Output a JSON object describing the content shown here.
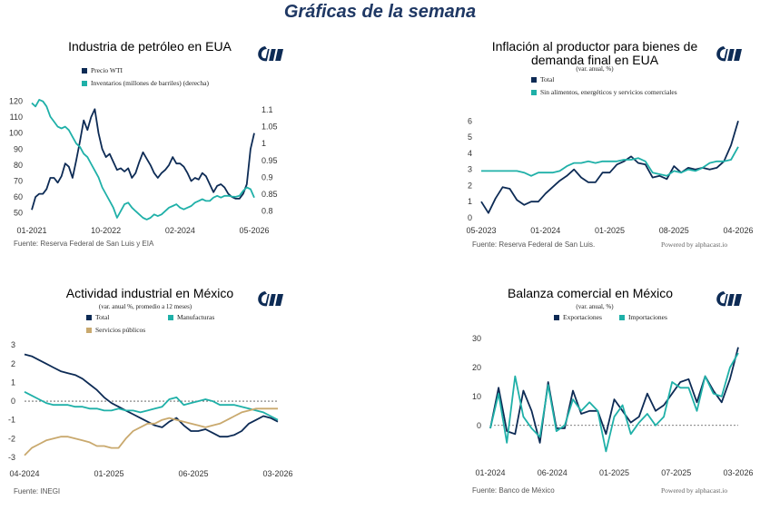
{
  "page": {
    "title": "Gráficas de la semana"
  },
  "colors": {
    "navy": "#0d2b55",
    "teal": "#1fb0a8",
    "gold": "#c9a96e",
    "logo": "#0d2b55"
  },
  "chart_data": [
    {
      "type": "line",
      "title": "Industria de petróleo en EUA",
      "subtitle": "",
      "source": "Fuente: Reserva Federal de San Luis y EIA",
      "powered": "",
      "x_ticks": [
        "01-2021",
        "10-2022",
        "02-2024",
        "05-2026"
      ],
      "y_ticks": [
        "50",
        "60",
        "70",
        "80",
        "90",
        "100",
        "110",
        "120"
      ],
      "y2_ticks": [
        "0.8",
        "0.85",
        "0.9",
        "0.95",
        "1",
        "1.05",
        "1.1"
      ],
      "ylim": [
        47,
        122
      ],
      "y2lim": [
        0.78,
        1.135
      ],
      "series": [
        {
          "name": "Precio WTI",
          "color": "#0d2b55",
          "axis": "left",
          "values": [
            52,
            60,
            62,
            62,
            65,
            72,
            72,
            69,
            73,
            81,
            79,
            72,
            83,
            95,
            108,
            102,
            110,
            115,
            100,
            90,
            85,
            87,
            82,
            77,
            78,
            76,
            78,
            72,
            75,
            82,
            88,
            84,
            80,
            75,
            72,
            75,
            77,
            80,
            85,
            81,
            81,
            79,
            75,
            70,
            72,
            71,
            75,
            73,
            68,
            63,
            67,
            68,
            66,
            62,
            60,
            59,
            59,
            62,
            68,
            90,
            100
          ]
        },
        {
          "name": "Inventarios (millones de barriles) (derecha)",
          "color": "#1fb0a8",
          "axis": "right",
          "values": [
            1.12,
            1.11,
            1.13,
            1.125,
            1.11,
            1.08,
            1.065,
            1.05,
            1.045,
            1.05,
            1.04,
            1.02,
            1.0,
            0.99,
            0.97,
            0.96,
            0.94,
            0.92,
            0.9,
            0.87,
            0.85,
            0.83,
            0.81,
            0.78,
            0.8,
            0.82,
            0.825,
            0.81,
            0.8,
            0.79,
            0.78,
            0.775,
            0.78,
            0.79,
            0.785,
            0.79,
            0.8,
            0.81,
            0.815,
            0.82,
            0.81,
            0.805,
            0.81,
            0.815,
            0.825,
            0.83,
            0.835,
            0.83,
            0.83,
            0.84,
            0.845,
            0.84,
            0.845,
            0.845,
            0.843,
            0.842,
            0.845,
            0.86,
            0.87,
            0.865,
            0.84
          ]
        }
      ]
    },
    {
      "type": "line",
      "title": "Inflación al productor para bienes de demanda final en EUA",
      "subtitle": "(var. anual, %)",
      "source": "Fuente: Reserva Federal de San Luis.",
      "powered": "Powered by alphacast.io",
      "x_ticks": [
        "05-2023",
        "01-2024",
        "01-2025",
        "08-2025",
        "04-2026"
      ],
      "y_ticks": [
        "0",
        "1",
        "2",
        "3",
        "4",
        "5",
        "6"
      ],
      "ylim": [
        0,
        6.3
      ],
      "series": [
        {
          "name": "Total",
          "color": "#0d2b55",
          "values": [
            1.0,
            0.3,
            1.2,
            1.9,
            1.8,
            1.1,
            0.8,
            1.0,
            1.0,
            1.5,
            1.9,
            2.3,
            2.6,
            3.0,
            2.5,
            2.2,
            2.2,
            2.8,
            2.8,
            3.3,
            3.5,
            3.8,
            3.4,
            3.3,
            2.5,
            2.6,
            2.4,
            3.2,
            2.8,
            3.1,
            3.0,
            3.1,
            3.0,
            3.1,
            3.5,
            4.5,
            6.0
          ]
        },
        {
          "name": "Sin alimentos, energéticos y servicios comerciales",
          "color": "#1fb0a8",
          "values": [
            2.9,
            2.9,
            2.9,
            2.9,
            2.9,
            2.9,
            2.8,
            2.6,
            2.8,
            2.8,
            2.8,
            2.9,
            3.2,
            3.4,
            3.4,
            3.5,
            3.4,
            3.5,
            3.5,
            3.5,
            3.6,
            3.6,
            3.7,
            3.5,
            2.8,
            2.7,
            2.6,
            2.9,
            2.8,
            3.0,
            2.9,
            3.1,
            3.4,
            3.5,
            3.5,
            3.6,
            4.4
          ]
        }
      ]
    },
    {
      "type": "line",
      "title": "Actividad industrial en México",
      "subtitle": "(var. anual %, promedio a 12 meses)",
      "source": "Fuente: INEGI",
      "powered": "",
      "x_ticks": [
        "04-2024",
        "01-2025",
        "06-2025",
        "03-2026"
      ],
      "y_ticks": [
        "-3",
        "-2",
        "-1",
        "0",
        "1",
        "2",
        "3"
      ],
      "ylim": [
        -3.2,
        3.4
      ],
      "series": [
        {
          "name": "Total",
          "color": "#0d2b55",
          "values": [
            2.5,
            2.4,
            2.2,
            2.0,
            1.8,
            1.6,
            1.5,
            1.4,
            1.2,
            0.9,
            0.6,
            0.2,
            -0.1,
            -0.3,
            -0.5,
            -0.7,
            -0.9,
            -1.1,
            -1.3,
            -1.4,
            -1.1,
            -0.9,
            -1.3,
            -1.6,
            -1.6,
            -1.5,
            -1.7,
            -1.9,
            -1.9,
            -1.8,
            -1.6,
            -1.2,
            -1.0,
            -0.8,
            -0.9,
            -1.1
          ]
        },
        {
          "name": "Manufacturas",
          "color": "#1fb0a8",
          "values": [
            0.5,
            0.3,
            0.1,
            -0.1,
            -0.2,
            -0.2,
            -0.2,
            -0.3,
            -0.3,
            -0.4,
            -0.4,
            -0.5,
            -0.5,
            -0.4,
            -0.5,
            -0.5,
            -0.6,
            -0.5,
            -0.4,
            -0.3,
            0.1,
            0.2,
            -0.2,
            -0.1,
            0.0,
            0.1,
            0.0,
            -0.2,
            -0.2,
            -0.2,
            -0.3,
            -0.4,
            -0.5,
            -0.6,
            -0.8,
            -1.0
          ]
        },
        {
          "name": "Servicios públicos",
          "color": "#c9a96e",
          "values": [
            -2.9,
            -2.5,
            -2.3,
            -2.1,
            -2.0,
            -1.9,
            -1.9,
            -2.0,
            -2.1,
            -2.2,
            -2.4,
            -2.4,
            -2.5,
            -2.5,
            -2.0,
            -1.6,
            -1.4,
            -1.2,
            -1.2,
            -1.0,
            -0.9,
            -1.0,
            -1.1,
            -1.2,
            -1.3,
            -1.4,
            -1.3,
            -1.2,
            -1.0,
            -0.8,
            -0.6,
            -0.5,
            -0.4,
            -0.4,
            -0.4,
            -0.4
          ]
        }
      ]
    },
    {
      "type": "line",
      "title": "Balanza comercial en México",
      "subtitle": "(var. anual, %)",
      "source": "Fuente: Banco de México",
      "powered": "Powered by alphacast.io",
      "x_ticks": [
        "01-2024",
        "06-2024",
        "01-2025",
        "07-2025",
        "03-2026"
      ],
      "y_ticks": [
        "0",
        "10",
        "20",
        "30"
      ],
      "ylim": [
        -12,
        31
      ],
      "series": [
        {
          "name": "Exportaciones",
          "color": "#0d2b55",
          "values": [
            -1,
            13,
            -2,
            -3,
            12,
            5,
            -6,
            15,
            -1,
            -1,
            12,
            4,
            5,
            5,
            -3,
            9,
            5,
            1,
            3,
            11,
            5,
            7,
            11,
            15,
            16,
            8,
            17,
            12,
            8,
            16,
            27
          ]
        },
        {
          "name": "Importaciones",
          "color": "#1fb0a8",
          "values": [
            -1,
            11,
            -6,
            17,
            3,
            -1,
            -4,
            14,
            -2,
            0,
            9,
            5,
            8,
            5,
            -9,
            3,
            7,
            -3,
            1,
            4,
            0,
            3,
            15,
            13,
            13,
            5,
            17,
            11,
            10,
            20,
            25
          ]
        }
      ]
    }
  ]
}
